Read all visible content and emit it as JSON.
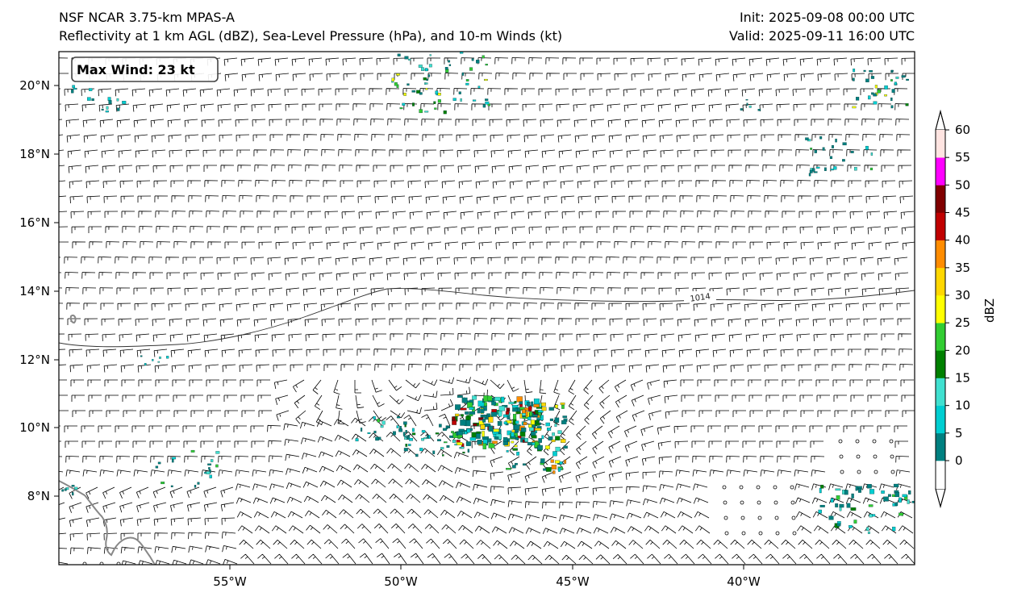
{
  "header": {
    "model": "NSF NCAR 3.75-km MPAS-A",
    "fields": "Reflectivity at 1 km AGL (dBZ), Sea-Level Pressure (hPa), and 10-m Winds (kt)",
    "init": "Init: 2025-09-08 00:00 UTC",
    "valid": "Valid: 2025-09-11 16:00 UTC"
  },
  "badge": {
    "max_wind": "Max Wind: 23 kt"
  },
  "map": {
    "lon_range": [
      -59.5,
      -34.5
    ],
    "lat_range": [
      6,
      21
    ],
    "lon_ticks": [
      "55°W",
      "50°W",
      "45°W",
      "40°W"
    ],
    "lat_ticks": [
      "20°N",
      "18°N",
      "16°N",
      "14°N",
      "12°N",
      "10°N",
      "8°N"
    ],
    "isobar_label": "1014"
  },
  "colorbar": {
    "label": "dBZ",
    "ticks": [
      "0",
      "5",
      "10",
      "15",
      "20",
      "25",
      "30",
      "35",
      "40",
      "45",
      "50",
      "55",
      "60"
    ],
    "colors": [
      "#008080",
      "#00CED1",
      "#40E0D0",
      "#008000",
      "#32CD32",
      "#FFFF00",
      "#FFD700",
      "#FF8C00",
      "#C00000",
      "#800000",
      "#FF00FF",
      "#FFE4E1"
    ]
  },
  "colors": {
    "coast": "#888888",
    "isobar": "#333333",
    "barb": "#000000"
  }
}
